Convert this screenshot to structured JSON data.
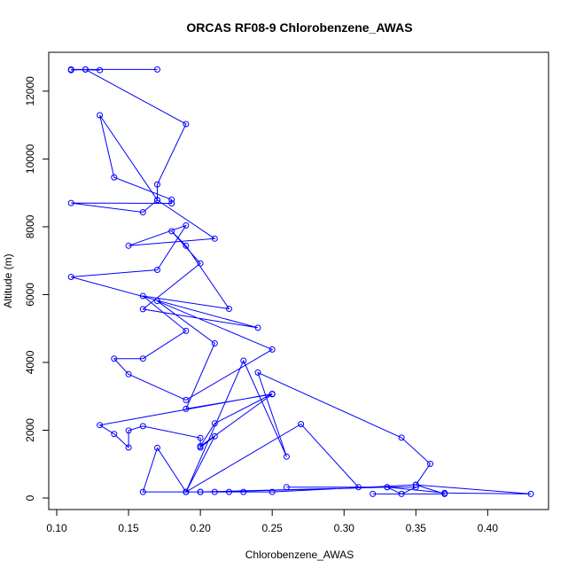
{
  "chart_data": {
    "type": "line",
    "title": "ORCAS RF08-9 Chlorobenzene_AWAS",
    "xlabel": "Chlorobenzene_AWAS",
    "ylabel": "Altitude (m)",
    "xlim": [
      0.1,
      0.43
    ],
    "ylim": [
      0,
      12650
    ],
    "x_ticks": [
      0.1,
      0.15,
      0.2,
      0.25,
      0.3,
      0.35,
      0.4
    ],
    "x_tick_labels": [
      "0.10",
      "0.15",
      "0.20",
      "0.25",
      "0.30",
      "0.35",
      "0.40"
    ],
    "y_ticks": [
      0,
      2000,
      4000,
      6000,
      8000,
      10000,
      12000
    ],
    "y_tick_labels": [
      "0",
      "2000",
      "4000",
      "6000",
      "8000",
      "10000",
      "12000"
    ],
    "grid": false,
    "legend": "none",
    "marker": "open-circle",
    "color": "#0000ff",
    "series": [
      {
        "x": [
          0.17,
          0.11,
          0.13,
          0.12,
          0.11,
          0.12,
          0.19,
          0.17,
          0.17,
          0.13,
          0.14,
          0.18,
          0.18,
          0.11,
          0.16,
          0.17,
          0.21,
          0.15,
          0.19,
          0.17,
          0.11,
          0.24,
          0.16,
          0.2,
          0.18,
          0.19,
          0.22,
          0.16,
          0.19,
          0.16,
          0.14,
          0.15,
          0.19,
          0.25,
          0.17,
          0.21,
          0.19,
          0.25,
          0.2,
          0.21,
          0.25,
          0.13,
          0.14,
          0.15,
          0.15,
          0.16,
          0.2,
          0.2,
          0.21,
          0.19,
          0.23,
          0.26,
          0.24,
          0.34,
          0.36,
          0.35,
          0.25,
          0.16,
          0.17,
          0.19,
          0.22,
          0.23,
          0.2,
          0.33,
          0.21,
          0.2,
          0.19,
          0.27,
          0.31,
          0.26,
          0.35,
          0.34,
          0.33,
          0.37,
          0.43,
          0.35,
          0.37,
          0.32
        ],
        "y": [
          12640,
          12640,
          12620,
          12640,
          12620,
          12640,
          11030,
          9250,
          8790,
          11290,
          9460,
          8800,
          8690,
          8700,
          8430,
          8790,
          7650,
          7440,
          8040,
          6730,
          6520,
          5020,
          5570,
          6920,
          7870,
          7440,
          5580,
          5960,
          4930,
          4110,
          4110,
          3650,
          2890,
          4380,
          5810,
          4560,
          2630,
          3060,
          1530,
          2200,
          3070,
          2150,
          1890,
          1490,
          1990,
          2120,
          1770,
          1490,
          1820,
          180,
          4050,
          1220,
          3700,
          1780,
          1010,
          390,
          180,
          180,
          1480,
          180,
          180,
          180,
          180,
          320,
          180,
          180,
          180,
          2180,
          320,
          320,
          320,
          120,
          320,
          150,
          120,
          390,
          120,
          120
        ]
      }
    ]
  }
}
